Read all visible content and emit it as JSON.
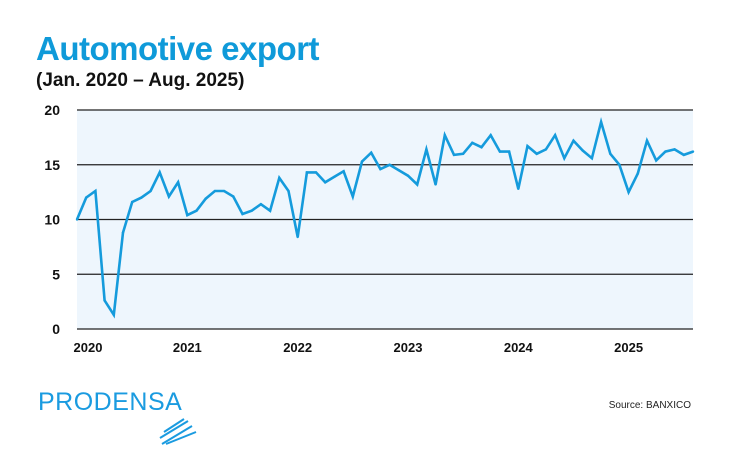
{
  "header": {
    "title": "Automotive export",
    "subtitle": "(Jan. 2020 – Aug. 2025)"
  },
  "footer": {
    "logo": "PRODENSA",
    "source": "Source: BANXICO"
  },
  "colors": {
    "line": "#159bdc",
    "plot_bg": "#eef6fd",
    "title": "#0f9ad9",
    "grid": "#222222"
  },
  "chart_data": {
    "type": "line",
    "title": "Automotive export",
    "subtitle": "(Jan. 2020 – Aug. 2025)",
    "xlabel": "",
    "ylabel": "",
    "ylim": [
      0,
      20
    ],
    "yticks": [
      0,
      5,
      10,
      15,
      20
    ],
    "xtick_labels": [
      "2020",
      "2021",
      "2022",
      "2023",
      "2024",
      "2025"
    ],
    "x_start": "2020-01",
    "x_end": "2025-08",
    "frequency": "monthly",
    "grid": "horizontal",
    "values": [
      10.0,
      12.0,
      12.6,
      2.6,
      1.3,
      8.8,
      11.6,
      12.0,
      12.6,
      14.3,
      12.1,
      13.4,
      10.4,
      10.8,
      11.9,
      12.6,
      12.6,
      12.1,
      10.5,
      10.8,
      11.4,
      10.8,
      13.8,
      12.6,
      8.4,
      14.3,
      14.3,
      13.4,
      13.9,
      14.4,
      12.1,
      15.3,
      16.1,
      14.6,
      15.0,
      14.5,
      14.0,
      13.2,
      16.4,
      13.2,
      17.7,
      15.9,
      16.0,
      17.0,
      16.6,
      17.7,
      16.2,
      16.2,
      12.8,
      16.7,
      16.0,
      16.4,
      17.7,
      15.6,
      17.2,
      16.3,
      15.6,
      18.9,
      16.0,
      15.0,
      12.5,
      14.2,
      17.2,
      15.4,
      16.2,
      16.4,
      15.9,
      16.2
    ]
  }
}
